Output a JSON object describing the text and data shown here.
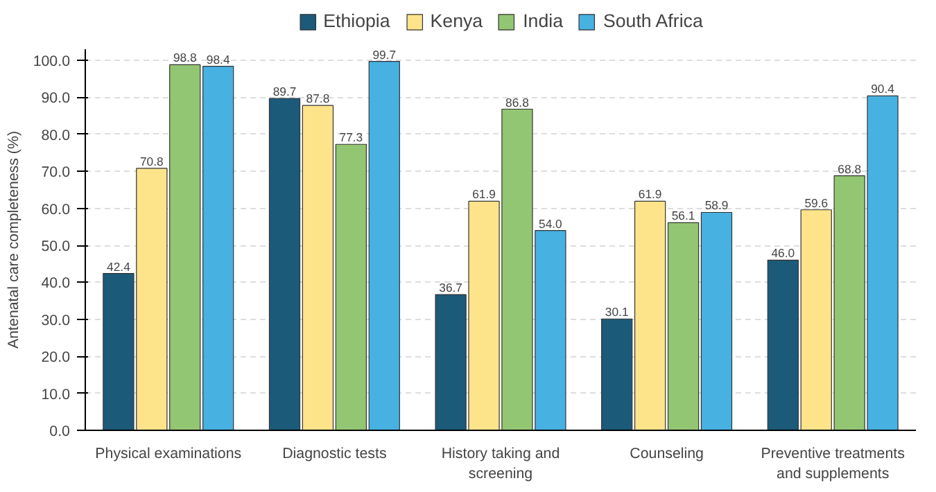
{
  "chart_data": {
    "type": "bar",
    "ylabel": "Antenatal care completeness (%)",
    "categories": [
      "Physical examinations",
      "Diagnostic tests",
      "History taking and\nscreening",
      "Counseling",
      "Preventive treatments\nand supplements"
    ],
    "series": [
      {
        "name": "Ethiopia",
        "color": "#1c5a7a",
        "values": [
          42.4,
          89.7,
          36.7,
          30.1,
          46.0
        ],
        "value_labels": [
          "42.4",
          "89.7",
          "36.7",
          "30.1",
          "46.0"
        ]
      },
      {
        "name": "Kenya",
        "color": "#fde48a",
        "values": [
          70.8,
          87.8,
          61.9,
          61.9,
          59.6
        ],
        "value_labels": [
          "70.8",
          "87.8",
          "61.9",
          "61.9",
          "59.6"
        ]
      },
      {
        "name": "India",
        "color": "#93c672",
        "values": [
          98.8,
          77.3,
          86.8,
          56.1,
          68.8
        ],
        "value_labels": [
          "98.8",
          "77.3",
          "86.8",
          "56.1",
          "68.8"
        ]
      },
      {
        "name": "South Africa",
        "color": "#47b1e2",
        "values": [
          98.4,
          99.7,
          54.0,
          58.9,
          90.4
        ],
        "value_labels": [
          "98.4",
          "99.7",
          "54.0",
          "58.9",
          "90.4"
        ]
      }
    ],
    "ylim": [
      0,
      103
    ],
    "yticks": [
      {
        "value": 0,
        "label": "0.0"
      },
      {
        "value": 10,
        "label": "10.0"
      },
      {
        "value": 20,
        "label": "20.0"
      },
      {
        "value": 30,
        "label": "30.0"
      },
      {
        "value": 40,
        "label": "40.0"
      },
      {
        "value": 50,
        "label": "50.0"
      },
      {
        "value": 60,
        "label": "60.0"
      },
      {
        "value": 70,
        "label": "70.0"
      },
      {
        "value": 80,
        "label": "80.0"
      },
      {
        "value": 90,
        "label": "90.0"
      },
      {
        "value": 100,
        "label": "100.0"
      }
    ],
    "grid": "y",
    "legend": "top"
  }
}
